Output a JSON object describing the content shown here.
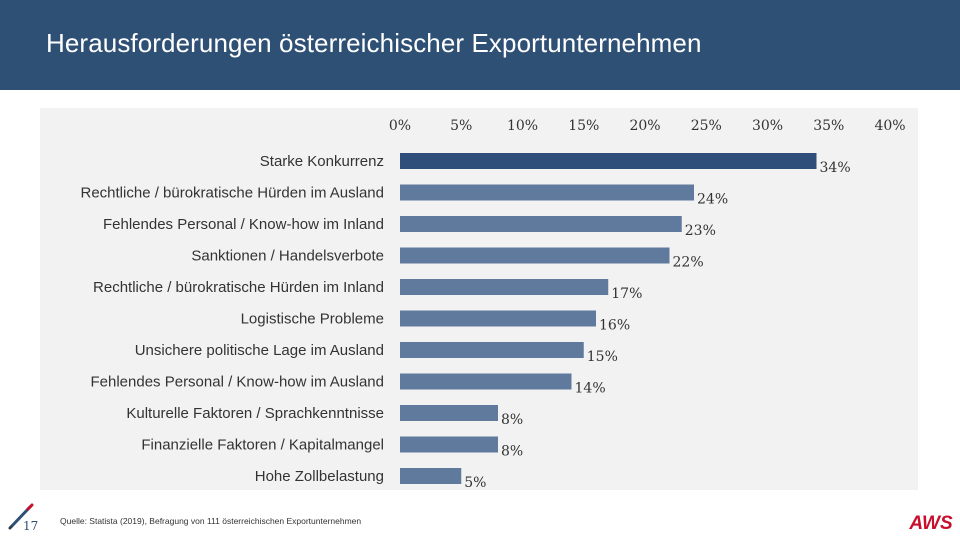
{
  "header": {
    "title": "Herausforderungen österreichischer Exportunternehmen"
  },
  "footer": {
    "page_number": "17",
    "source": "Quelle: Statista (2019), Befragung von 111 österreichischen Exportunternehmen",
    "logo_text": "AWS"
  },
  "colors": {
    "header_bg": "#2f5075",
    "bar_top": "#2f4f7a",
    "bar": "#5f7a9c",
    "panel_bg": "#f2f2f2"
  },
  "chart_data": {
    "type": "bar",
    "orientation": "horizontal",
    "title": "",
    "xlabel": "",
    "ylabel": "",
    "xlim": [
      0,
      40
    ],
    "ticks": [
      "0%",
      "5%",
      "10%",
      "15%",
      "20%",
      "25%",
      "30%",
      "35%",
      "40%"
    ],
    "tick_values": [
      0,
      5,
      10,
      15,
      20,
      25,
      30,
      35,
      40
    ],
    "categories": [
      "Starke Konkurrenz",
      "Rechtliche / bürokratische Hürden im Ausland",
      "Fehlendes Personal / Know-how im Inland",
      "Sanktionen / Handelsverbote",
      "Rechtliche / bürokratische Hürden im Inland",
      "Logistische Probleme",
      "Unsichere politische Lage im Ausland",
      "Fehlendes Personal / Know-how im Ausland",
      "Kulturelle Faktoren / Sprachkenntnisse",
      "Finanzielle Faktoren / Kapitalmangel",
      "Hohe Zollbelastung"
    ],
    "values": [
      34,
      24,
      23,
      22,
      17,
      16,
      15,
      14,
      8,
      8,
      5
    ],
    "data_labels": [
      "34%",
      "24%",
      "23%",
      "22%",
      "17%",
      "16%",
      "15%",
      "14%",
      "8%",
      "8%",
      "5%"
    ],
    "grid": false,
    "legend": "none"
  }
}
